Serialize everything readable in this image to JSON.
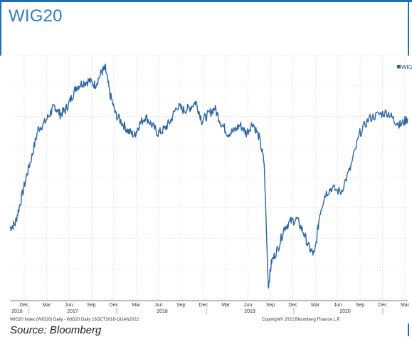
{
  "title": "WIG20",
  "source": "Source: Bloomberg",
  "colors": {
    "accent": "#2e7fc4",
    "line": "#2b65a6",
    "grid": "#d3d3d3"
  },
  "chart_data": {
    "type": "line",
    "title": "WIG20",
    "legend": {
      "label": "WIG",
      "placement": "top-right"
    },
    "grid": true,
    "month_ticks": [
      "Dec",
      "Mar",
      "Jun",
      "Sep",
      "Dec",
      "Mar",
      "Jun",
      "Sep",
      "Dec",
      "Mar",
      "Jun",
      "Sep",
      "Dec",
      "Mar",
      "Jun",
      "Sep",
      "Dec",
      "Mar"
    ],
    "year_labels": [
      "2016",
      "2017",
      "2018",
      "2019",
      "2020"
    ],
    "footer_left": "WIG20 Index (WIG20) Daily - WIG20  Daily 16OCT2016-18JAN2022",
    "footer_right": "Copyright© 2022 Bloomberg Finance L.P.",
    "x_range": [
      "2016-10-16",
      "2022-01-18"
    ],
    "series": [
      {
        "name": "WIG",
        "points": [
          [
            "2016-10-16",
            1740
          ],
          [
            "2016-11-10",
            1760
          ],
          [
            "2016-12-05",
            1860
          ],
          [
            "2017-01-05",
            1990
          ],
          [
            "2017-02-01",
            2090
          ],
          [
            "2017-03-01",
            2210
          ],
          [
            "2017-04-01",
            2240
          ],
          [
            "2017-05-01",
            2290
          ],
          [
            "2017-05-20",
            2320
          ],
          [
            "2017-06-15",
            2280
          ],
          [
            "2017-07-10",
            2300
          ],
          [
            "2017-08-05",
            2350
          ],
          [
            "2017-09-01",
            2410
          ],
          [
            "2017-10-01",
            2430
          ],
          [
            "2017-11-01",
            2440
          ],
          [
            "2017-12-01",
            2420
          ],
          [
            "2018-01-01",
            2480
          ],
          [
            "2018-01-20",
            2500
          ],
          [
            "2018-02-10",
            2380
          ],
          [
            "2018-03-10",
            2280
          ],
          [
            "2018-04-10",
            2240
          ],
          [
            "2018-05-10",
            2200
          ],
          [
            "2018-06-10",
            2180
          ],
          [
            "2018-07-01",
            2230
          ],
          [
            "2018-08-01",
            2270
          ],
          [
            "2018-09-01",
            2230
          ],
          [
            "2018-10-01",
            2190
          ],
          [
            "2018-11-01",
            2210
          ],
          [
            "2018-12-01",
            2250
          ],
          [
            "2019-01-01",
            2320
          ],
          [
            "2019-02-01",
            2300
          ],
          [
            "2019-03-01",
            2310
          ],
          [
            "2019-04-01",
            2340
          ],
          [
            "2019-05-01",
            2250
          ],
          [
            "2019-06-01",
            2280
          ],
          [
            "2019-07-01",
            2310
          ],
          [
            "2019-08-01",
            2240
          ],
          [
            "2019-09-01",
            2190
          ],
          [
            "2019-10-01",
            2200
          ],
          [
            "2019-11-01",
            2230
          ],
          [
            "2019-12-01",
            2190
          ],
          [
            "2020-01-01",
            2240
          ],
          [
            "2020-02-01",
            2170
          ],
          [
            "2020-02-25",
            2050
          ],
          [
            "2020-03-16",
            1460
          ],
          [
            "2020-04-01",
            1580
          ],
          [
            "2020-05-01",
            1640
          ],
          [
            "2020-06-01",
            1740
          ],
          [
            "2020-07-01",
            1770
          ],
          [
            "2020-08-01",
            1780
          ],
          [
            "2020-09-01",
            1720
          ],
          [
            "2020-10-01",
            1640
          ],
          [
            "2020-10-25",
            1610
          ],
          [
            "2020-11-20",
            1810
          ],
          [
            "2020-12-15",
            1900
          ],
          [
            "2021-01-15",
            1930
          ],
          [
            "2021-03-01",
            1910
          ],
          [
            "2021-04-15",
            2020
          ],
          [
            "2021-06-01",
            2190
          ],
          [
            "2021-07-15",
            2260
          ],
          [
            "2021-09-01",
            2280
          ],
          [
            "2021-10-15",
            2290
          ],
          [
            "2021-11-15",
            2250
          ],
          [
            "2021-12-15",
            2230
          ],
          [
            "2022-01-18",
            2260
          ]
        ]
      }
    ]
  }
}
